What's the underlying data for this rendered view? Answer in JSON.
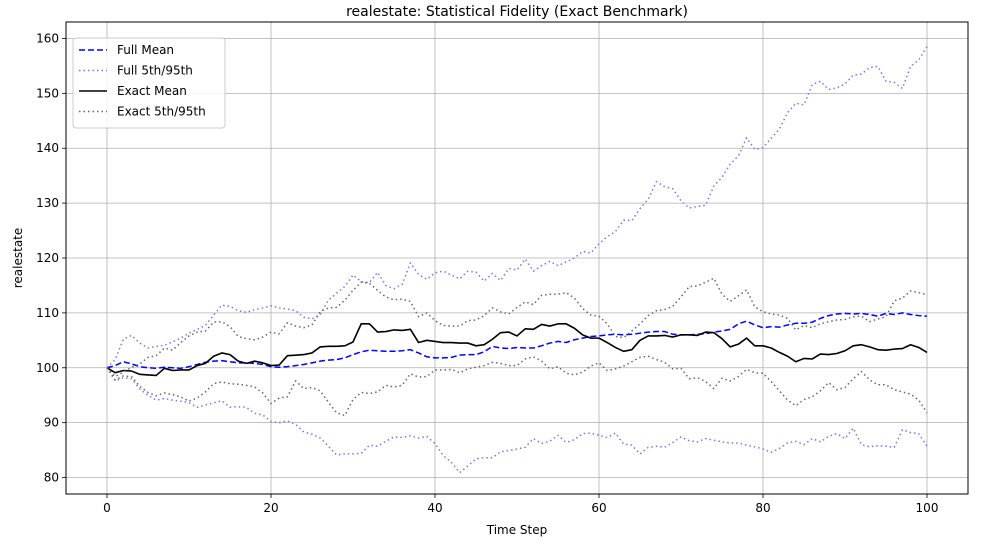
{
  "chart_data": {
    "type": "line",
    "title": "realestate: Statistical Fidelity (Exact Benchmark)",
    "xlabel": "Time Step",
    "ylabel": "realestate",
    "xlim": [
      -5,
      105
    ],
    "ylim": [
      77,
      163
    ],
    "xticks": [
      0,
      20,
      40,
      60,
      80,
      100
    ],
    "yticks": [
      80,
      90,
      100,
      110,
      120,
      130,
      140,
      150,
      160
    ],
    "grid": true,
    "legend_position": "top-left",
    "x": [
      0,
      1,
      2,
      3,
      4,
      5,
      6,
      7,
      8,
      9,
      10,
      11,
      12,
      13,
      14,
      15,
      16,
      17,
      18,
      19,
      20,
      21,
      22,
      23,
      24,
      25,
      26,
      27,
      28,
      29,
      30,
      31,
      32,
      33,
      34,
      35,
      36,
      37,
      38,
      39,
      40,
      41,
      42,
      43,
      44,
      45,
      46,
      47,
      48,
      49,
      50,
      51,
      52,
      53,
      54,
      55,
      56,
      57,
      58,
      59,
      60,
      61,
      62,
      63,
      64,
      65,
      66,
      67,
      68,
      69,
      70,
      71,
      72,
      73,
      74,
      75,
      76,
      77,
      78,
      79,
      80,
      81,
      82,
      83,
      84,
      85,
      86,
      87,
      88,
      89,
      90,
      91,
      92,
      93,
      94,
      95,
      96,
      97,
      98,
      99,
      100
    ],
    "series": [
      {
        "name": "Full Mean",
        "color": "#0000ff",
        "dash": "dashed",
        "values": [
          100.0,
          100.4,
          101.1,
          100.7,
          100.2,
          100.0,
          99.9,
          100.1,
          100.0,
          99.9,
          100.2,
          100.6,
          101.0,
          101.2,
          101.3,
          101.1,
          100.9,
          100.9,
          100.8,
          100.6,
          100.2,
          100.1,
          100.2,
          100.4,
          100.6,
          100.9,
          101.2,
          101.4,
          101.5,
          101.8,
          102.4,
          102.9,
          103.2,
          103.1,
          103.0,
          103.0,
          103.1,
          103.3,
          102.7,
          102.0,
          101.8,
          101.8,
          101.9,
          102.3,
          102.4,
          102.4,
          102.9,
          103.9,
          103.6,
          103.5,
          103.7,
          103.6,
          103.6,
          104.0,
          104.5,
          104.8,
          104.6,
          105.1,
          105.4,
          105.7,
          105.8,
          106.0,
          106.1,
          106.0,
          106.1,
          106.3,
          106.5,
          106.6,
          106.6,
          106.1,
          106.0,
          106.0,
          106.1,
          106.2,
          106.5,
          106.7,
          107.0,
          108.0,
          108.5,
          107.8,
          107.3,
          107.5,
          107.4,
          107.8,
          108.1,
          108.1,
          108.3,
          109.0,
          109.5,
          109.8,
          109.9,
          109.8,
          109.9,
          109.7,
          109.4,
          109.9,
          109.7,
          110.0,
          109.7,
          109.5,
          109.4
        ]
      },
      {
        "name": "Full 5th/95th",
        "color": "#7777ee",
        "dash": "dotted",
        "values": [
          100.0,
          101.5,
          105.2,
          105.9,
          104.5,
          103.6,
          103.9,
          104.1,
          104.7,
          105.4,
          106.3,
          107.0,
          107.7,
          109.6,
          111.4,
          111.2,
          110.4,
          110.1,
          110.6,
          110.9,
          111.3,
          110.9,
          110.7,
          110.4,
          109.2,
          108.9,
          109.7,
          112.3,
          113.6,
          114.8,
          116.9,
          115.7,
          115.5,
          117.4,
          115.0,
          114.4,
          115.2,
          119.1,
          117.0,
          116.1,
          117.3,
          117.6,
          116.9,
          116.2,
          117.6,
          117.4,
          115.8,
          117.2,
          115.9,
          118.1,
          117.8,
          119.8,
          117.6,
          118.6,
          119.4,
          118.6,
          119.3,
          120.0,
          121.2,
          120.9,
          122.6,
          123.9,
          124.8,
          126.9,
          126.8,
          129.0,
          130.7,
          133.9,
          133.0,
          132.6,
          130.4,
          129.1,
          129.4,
          129.6,
          133.1,
          134.7,
          137.1,
          138.6,
          141.9,
          139.8,
          140.1,
          141.8,
          143.5,
          146.5,
          148.2,
          147.9,
          151.6,
          152.2,
          150.7,
          151.0,
          151.7,
          153.3,
          153.5,
          154.7,
          154.9,
          152.2,
          152.0,
          150.9,
          154.9,
          156.1,
          158.5
        ]
      },
      {
        "name": "Full 5th/95th lower",
        "color": "#7777ee",
        "dash": "dotted",
        "values": [
          100.0,
          97.6,
          98.2,
          98.0,
          96.1,
          95.0,
          94.1,
          94.4,
          94.1,
          93.9,
          93.6,
          92.8,
          93.2,
          93.6,
          94.0,
          92.8,
          92.9,
          92.8,
          91.7,
          91.4,
          90.2,
          90.0,
          90.3,
          89.7,
          88.3,
          87.9,
          87.2,
          85.7,
          84.1,
          84.3,
          84.3,
          84.4,
          85.9,
          85.7,
          86.6,
          87.4,
          87.3,
          87.6,
          87.2,
          87.5,
          86.2,
          84.0,
          82.8,
          80.9,
          82.1,
          83.4,
          83.6,
          83.6,
          84.7,
          84.9,
          85.2,
          85.5,
          87.1,
          86.2,
          86.6,
          87.7,
          86.4,
          86.9,
          88.0,
          88.1,
          87.7,
          87.3,
          88.1,
          86.1,
          85.9,
          84.3,
          85.5,
          85.7,
          85.5,
          86.4,
          87.4,
          86.7,
          86.5,
          87.1,
          86.8,
          86.5,
          86.3,
          86.3,
          85.9,
          85.6,
          85.2,
          84.6,
          85.3,
          86.3,
          86.6,
          86.0,
          87.1,
          86.5,
          87.5,
          88.0,
          87.1,
          89.0,
          86.0,
          85.6,
          85.8,
          85.7,
          85.5,
          88.7,
          88.2,
          88.0,
          85.7
        ]
      },
      {
        "name": "Exact Mean",
        "color": "#000000",
        "dash": "solid",
        "values": [
          100.0,
          99.1,
          99.5,
          99.4,
          98.8,
          98.7,
          98.6,
          99.9,
          99.5,
          99.6,
          99.6,
          100.4,
          100.8,
          102.1,
          102.7,
          102.4,
          101.2,
          100.8,
          101.2,
          100.9,
          100.4,
          100.5,
          102.2,
          102.3,
          102.4,
          102.7,
          103.8,
          103.9,
          103.9,
          104.0,
          104.7,
          108.0,
          108.0,
          106.5,
          106.6,
          106.9,
          106.8,
          107.0,
          104.6,
          105.0,
          104.8,
          104.6,
          104.6,
          104.5,
          104.5,
          104.0,
          104.2,
          105.2,
          106.4,
          106.5,
          105.8,
          107.1,
          107.0,
          107.9,
          107.6,
          108.0,
          108.0,
          107.2,
          106.0,
          105.4,
          105.4,
          104.6,
          103.7,
          103.0,
          103.3,
          105.0,
          105.8,
          105.8,
          105.9,
          105.6,
          106.0,
          106.0,
          105.9,
          106.5,
          106.4,
          105.3,
          103.8,
          104.3,
          105.4,
          104.0,
          104.0,
          103.6,
          102.8,
          102.1,
          101.1,
          101.7,
          101.6,
          102.5,
          102.4,
          102.6,
          103.1,
          104.0,
          104.2,
          103.8,
          103.3,
          103.2,
          103.4,
          103.5,
          104.2,
          103.7,
          102.8
        ]
      },
      {
        "name": "Exact 5th/95th",
        "color": "#666666",
        "dash": "dotted",
        "values": [
          100.0,
          98.4,
          99.2,
          100.1,
          100.7,
          101.9,
          102.2,
          103.6,
          103.2,
          104.6,
          105.8,
          106.5,
          106.7,
          108.3,
          108.4,
          107.5,
          105.7,
          105.3,
          105.1,
          105.6,
          106.5,
          106.2,
          108.2,
          107.6,
          107.3,
          107.8,
          110.2,
          110.9,
          111.0,
          112.3,
          114.1,
          115.6,
          115.4,
          114.1,
          112.9,
          112.4,
          112.5,
          112.1,
          109.3,
          110.0,
          108.6,
          107.7,
          107.6,
          107.6,
          108.6,
          108.7,
          109.5,
          110.9,
          110.2,
          109.8,
          111.0,
          112.0,
          111.5,
          113.2,
          113.4,
          113.4,
          113.7,
          112.7,
          110.8,
          109.6,
          109.4,
          108.0,
          105.7,
          105.5,
          106.7,
          108.0,
          109.5,
          110.4,
          110.6,
          111.2,
          112.9,
          114.8,
          114.9,
          115.6,
          116.3,
          113.4,
          112.1,
          113.1,
          114.2,
          111.1,
          110.2,
          109.8,
          109.6,
          109.0,
          106.9,
          107.7,
          107.3,
          108.0,
          108.4,
          108.7,
          108.8,
          109.3,
          109.4,
          108.4,
          108.9,
          109.3,
          112.2,
          112.7,
          114.0,
          113.7,
          113.3
        ]
      },
      {
        "name": "Exact 5th/95th lower",
        "color": "#666666",
        "dash": "dotted",
        "values": [
          100.0,
          97.8,
          98.5,
          98.4,
          96.6,
          95.5,
          94.9,
          95.4,
          95.1,
          94.7,
          93.9,
          94.5,
          95.6,
          97.1,
          97.4,
          97.1,
          97.0,
          96.8,
          96.5,
          95.4,
          93.5,
          94.5,
          94.7,
          97.6,
          96.2,
          96.4,
          95.8,
          93.7,
          91.8,
          91.3,
          94.2,
          95.5,
          95.3,
          95.6,
          96.8,
          96.5,
          96.8,
          98.9,
          98.3,
          98.4,
          99.6,
          99.6,
          99.7,
          99.1,
          99.8,
          100.1,
          100.4,
          101.0,
          100.8,
          100.4,
          100.4,
          101.6,
          102.0,
          101.2,
          99.8,
          100.2,
          99.0,
          98.7,
          99.2,
          100.3,
          100.9,
          99.5,
          99.8,
          100.3,
          101.1,
          101.9,
          102.1,
          101.5,
          101.0,
          99.8,
          99.9,
          98.0,
          98.2,
          97.5,
          96.2,
          98.1,
          97.6,
          98.4,
          99.7,
          99.1,
          99.0,
          97.5,
          95.8,
          94.1,
          93.1,
          94.2,
          94.7,
          95.8,
          97.3,
          96.0,
          96.4,
          98.0,
          99.3,
          97.8,
          96.9,
          96.9,
          96.0,
          95.6,
          95.2,
          94.1,
          91.8
        ]
      }
    ],
    "legend": [
      {
        "label": "Full Mean",
        "color": "#0000ff",
        "dash": "dashed"
      },
      {
        "label": "Full 5th/95th",
        "color": "#7777ee",
        "dash": "dotted"
      },
      {
        "label": "Exact Mean",
        "color": "#000000",
        "dash": "solid"
      },
      {
        "label": "Exact 5th/95th",
        "color": "#666666",
        "dash": "dotted"
      }
    ]
  }
}
